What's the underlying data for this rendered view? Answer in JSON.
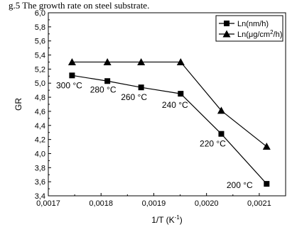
{
  "caption": "g.5 The growth rate on steel substrate.",
  "chart_data": {
    "type": "line",
    "title": "",
    "xlabel": "1/T (K",
    "xlabel_sup": "-1",
    "xlabel_end": ")",
    "ylabel": "GR",
    "xlim": [
      0.0017,
      0.00215
    ],
    "ylim": [
      3.4,
      6.0
    ],
    "x_ticks": [
      "0,0017",
      "0,0018",
      "0,0019",
      "0,0020",
      "0,0021"
    ],
    "x_tick_values": [
      0.0017,
      0.0018,
      0.0019,
      0.002,
      0.0021
    ],
    "y_ticks": [
      "3,4",
      "3,6",
      "3,8",
      "4,0",
      "4,2",
      "4,4",
      "4,6",
      "4,8",
      "5,0",
      "5,2",
      "5,4",
      "5,6",
      "5,8",
      "6,0"
    ],
    "y_tick_values": [
      3.4,
      3.6,
      3.8,
      4.0,
      4.2,
      4.4,
      4.6,
      4.8,
      5.0,
      5.2,
      5.4,
      5.6,
      5.8,
      6.0
    ],
    "legend_position": "top-right",
    "grid": false,
    "series": [
      {
        "name": "Ln(nm/h)",
        "marker": "square",
        "x": [
          0.001745,
          0.001812,
          0.001876,
          0.001951,
          0.002028,
          0.002114
        ],
        "y": [
          5.11,
          5.03,
          4.94,
          4.85,
          4.28,
          3.57
        ]
      },
      {
        "name": "Ln(μg/cm²/h)",
        "legend_prefix": "Ln(",
        "legend_unit": "μg/cm",
        "legend_sup": "2",
        "legend_suffix": "/h)",
        "marker": "triangle",
        "x": [
          0.001745,
          0.001812,
          0.001876,
          0.001951,
          0.002028,
          0.002114
        ],
        "y": [
          5.3,
          5.3,
          5.3,
          5.3,
          4.61,
          4.1
        ]
      }
    ],
    "annotations": [
      {
        "text": "300 °C",
        "x": 0.001745,
        "y": 5.11
      },
      {
        "text": "280 °C",
        "x": 0.001812,
        "y": 5.03
      },
      {
        "text": "260 °C",
        "x": 0.001876,
        "y": 4.94
      },
      {
        "text": "240 °C",
        "x": 0.001951,
        "y": 4.85
      },
      {
        "text": "220 °C",
        "x": 0.002028,
        "y": 4.28
      },
      {
        "text": "200 °C",
        "x": 0.002114,
        "y": 3.57
      }
    ]
  }
}
